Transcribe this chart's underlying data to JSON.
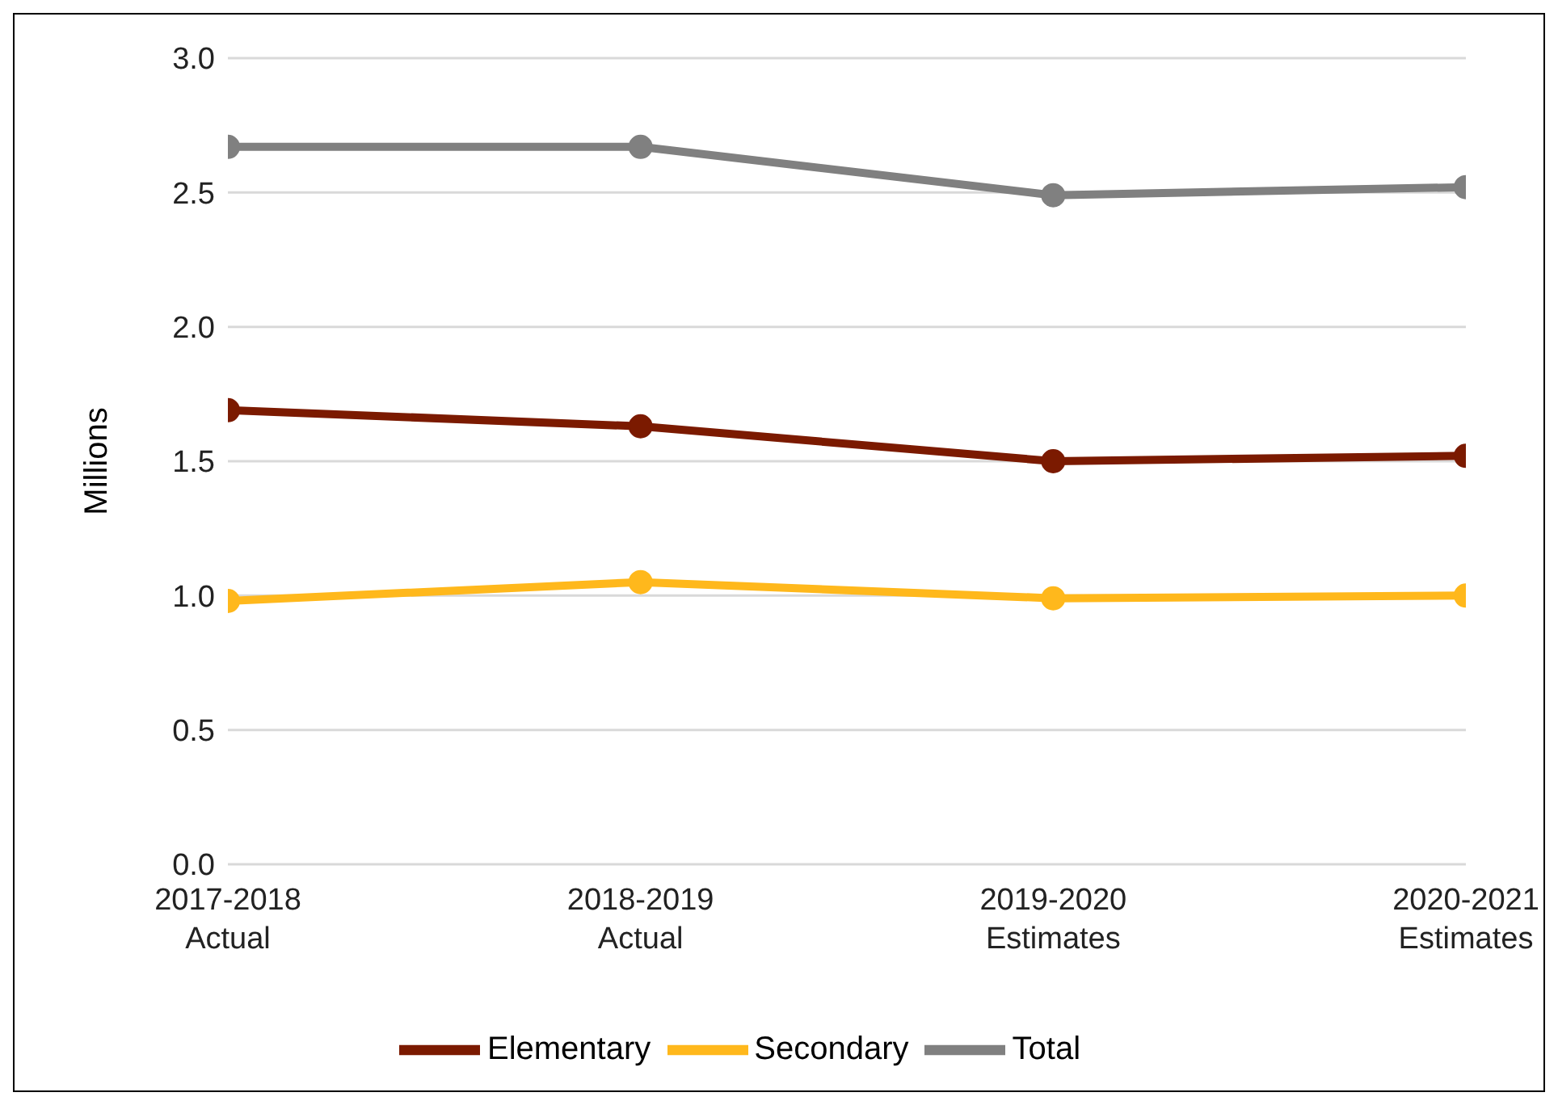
{
  "chart_data": {
    "type": "line",
    "ylabel": "Millions",
    "categories": [
      "2017-2018\nActual",
      "2018-2019\nActual",
      "2019-2020\nEstimates",
      "2020-2021\nEstimates"
    ],
    "series": [
      {
        "name": "Elementary",
        "color": "#7b1a00",
        "values": [
          1.69,
          1.63,
          1.5,
          1.52
        ]
      },
      {
        "name": "Secondary",
        "color": "#ffb81c",
        "values": [
          0.98,
          1.05,
          0.99,
          1.0
        ]
      },
      {
        "name": "Total",
        "color": "#808080",
        "values": [
          2.67,
          2.67,
          2.49,
          2.52
        ]
      }
    ],
    "ylim": [
      0,
      3
    ],
    "yticks": [
      {
        "value": 0,
        "label": "0.0"
      },
      {
        "value": 0.5,
        "label": "0.5"
      },
      {
        "value": 1,
        "label": "1.0"
      },
      {
        "value": 1.5,
        "label": "1.5"
      },
      {
        "value": 2,
        "label": "2.0"
      },
      {
        "value": 2.5,
        "label": "2.5"
      },
      {
        "value": 3,
        "label": "3.0"
      }
    ],
    "grid": "y",
    "legend": "bottom",
    "marker": "circle",
    "line_style": "solid"
  }
}
